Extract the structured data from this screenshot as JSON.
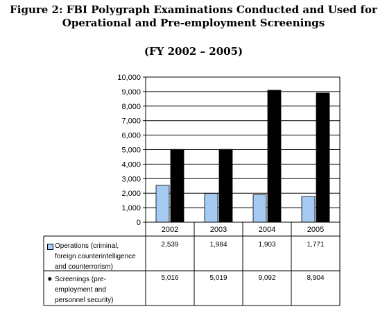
{
  "title_line1": "Figure 2:  FBI Polygraph Examinations Conducted and Used for",
  "title_line2": "Operational and Pre-employment Screenings",
  "subtitle": "(FY 2002 – 2005)",
  "colors": {
    "operations": "#a6cbf3",
    "screenings": "#000000",
    "grid": "#000000"
  },
  "chart_data": {
    "type": "bar",
    "title": "Figure 2:  FBI Polygraph Examinations Conducted and Used for Operational and Pre-employment Screenings",
    "subtitle": "(FY 2002 – 2005)",
    "categories": [
      "2002",
      "2003",
      "2004",
      "2005"
    ],
    "series": [
      {
        "name": "Operations (criminal, foreign counterintelligence and counterrorism)",
        "values": [
          2539,
          1984,
          1903,
          1771
        ],
        "labels": [
          "2,539",
          "1,984",
          "1,903",
          "1,771"
        ]
      },
      {
        "name": "Screenings (pre-employment and personnel security)",
        "values": [
          5016,
          5019,
          9092,
          8904
        ],
        "labels": [
          "5,016",
          "5,019",
          "9,092",
          "8,904"
        ]
      }
    ],
    "ylim": [
      0,
      10000
    ],
    "yticks": [
      0,
      1000,
      2000,
      3000,
      4000,
      5000,
      6000,
      7000,
      8000,
      9000,
      10000
    ],
    "ytick_labels": [
      "0",
      "1,000",
      "2,000",
      "3,000",
      "4,000",
      "5,000",
      "6,000",
      "7,000",
      "8,000",
      "9,000",
      "10,000"
    ],
    "grid": true,
    "legend": "data table rows below chart"
  },
  "table": {
    "rows": [
      {
        "label_lines": [
          "Operations (criminal,",
          "foreign counterintelligence",
          "and counterrorism)"
        ]
      },
      {
        "label_lines": [
          "Screenings (pre-",
          "employment and",
          "personnel security)"
        ]
      }
    ]
  }
}
